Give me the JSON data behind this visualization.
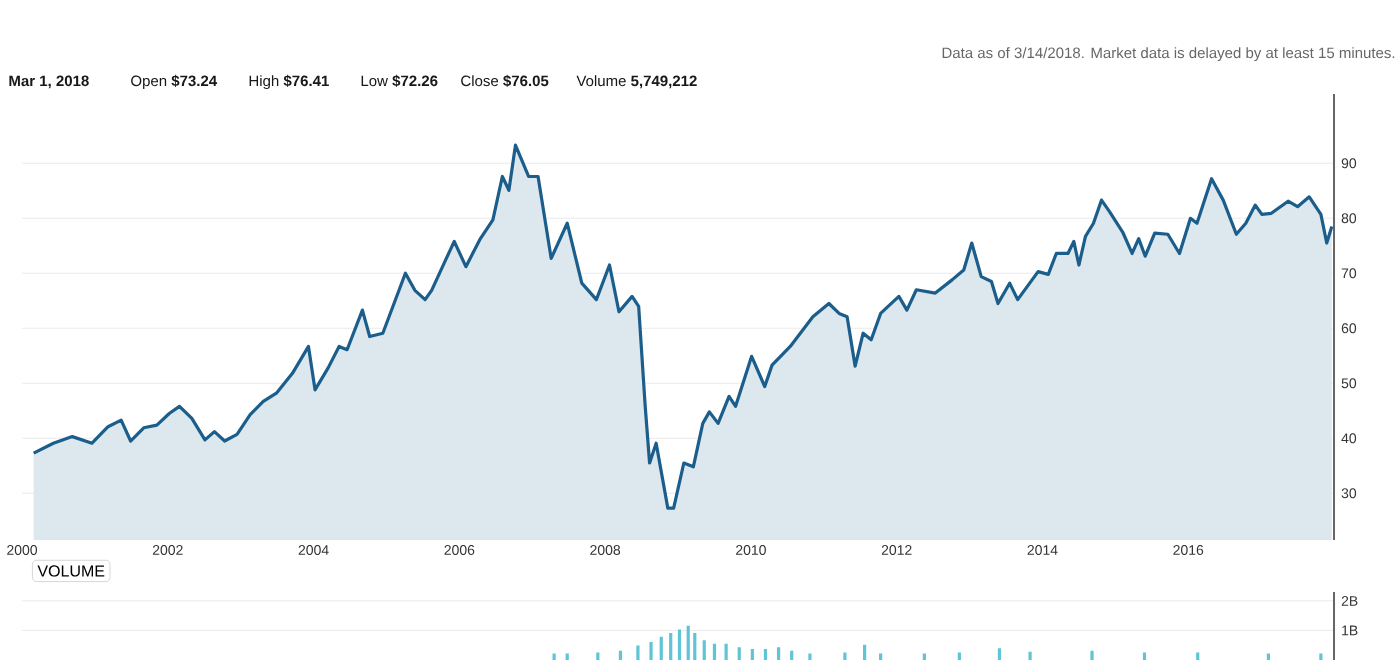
{
  "chart_data": [
    {
      "type": "area",
      "color": "#1b5e8c",
      "grid": "y",
      "xlim": [
        2000,
        2018
      ],
      "xticks": [
        2000,
        2002,
        2004,
        2006,
        2008,
        2010,
        2012,
        2014,
        2016
      ],
      "ylim": [
        21.5,
        102.6
      ],
      "yticks": [
        30,
        40,
        50,
        60,
        70,
        80,
        90
      ],
      "annotations": [
        "Data as of 3/14/2018. Market data is delayed by at least 15 minutes.",
        "**Mar 1, 2018**",
        "Open **$73.24**",
        "High **$76.41**",
        "Low **$72.26**",
        "Close **$76.05**",
        "Volume **5,749,212**"
      ],
      "x": [
        2000.16,
        2000.43,
        2000.69,
        2000.96,
        2001.18,
        2001.36,
        2001.49,
        2001.67,
        2001.85,
        2002.02,
        2002.16,
        2002.33,
        2002.51,
        2002.64,
        2002.78,
        2002.95,
        2003.13,
        2003.31,
        2003.49,
        2003.71,
        2003.93,
        2004.02,
        2004.2,
        2004.35,
        2004.46,
        2004.67,
        2004.77,
        2004.95,
        2005.26,
        2005.39,
        2005.53,
        2005.62,
        2005.79,
        2005.93,
        2006.09,
        2006.28,
        2006.46,
        2006.59,
        2006.68,
        2006.77,
        2006.95,
        2007.08,
        2007.26,
        2007.48,
        2007.68,
        2007.88,
        2008.06,
        2008.19,
        2008.37,
        2008.46,
        2008.55,
        2008.61,
        2008.7,
        2008.86,
        2008.94,
        2009.08,
        2009.21,
        2009.34,
        2009.43,
        2009.55,
        2009.7,
        2009.79,
        2010.01,
        2010.19,
        2010.29,
        2010.54,
        2010.85,
        2011.07,
        2011.21,
        2011.32,
        2011.43,
        2011.54,
        2011.65,
        2011.78,
        2012.03,
        2012.14,
        2012.27,
        2012.53,
        2012.76,
        2012.92,
        2013.03,
        2013.16,
        2013.3,
        2013.39,
        2013.55,
        2013.66,
        2013.94,
        2014.08,
        2014.19,
        2014.35,
        2014.43,
        2014.5,
        2014.59,
        2014.7,
        2014.81,
        2014.92,
        2015.1,
        2015.23,
        2015.32,
        2015.41,
        2015.54,
        2015.72,
        2015.88,
        2016.03,
        2016.12,
        2016.32,
        2016.48,
        2016.66,
        2016.79,
        2016.92,
        2017.01,
        2017.14,
        2017.37,
        2017.5,
        2017.66,
        2017.82,
        2017.9,
        2017.97
      ],
      "values": [
        37.3,
        39.1,
        40.3,
        39.1,
        42.1,
        43.3,
        39.5,
        41.9,
        42.4,
        44.5,
        45.8,
        43.6,
        39.7,
        41.2,
        39.5,
        40.7,
        44.3,
        46.7,
        48.2,
        51.8,
        56.7,
        48.8,
        52.8,
        56.7,
        56.1,
        63.3,
        58.5,
        59.1,
        70.0,
        66.9,
        65.2,
        66.9,
        71.8,
        75.8,
        71.2,
        76.1,
        79.7,
        87.6,
        85.1,
        93.3,
        87.6,
        87.6,
        72.7,
        79.1,
        68.2,
        65.2,
        71.5,
        63.0,
        65.8,
        64.0,
        45.8,
        35.5,
        39.1,
        27.3,
        27.3,
        35.5,
        34.8,
        42.7,
        44.8,
        42.7,
        47.6,
        45.8,
        54.9,
        49.4,
        53.3,
        56.7,
        62.1,
        64.5,
        62.7,
        62.1,
        53.1,
        59.1,
        57.9,
        62.7,
        65.8,
        63.3,
        67.0,
        66.4,
        68.8,
        70.6,
        75.5,
        69.4,
        68.5,
        64.5,
        68.2,
        65.2,
        70.3,
        69.8,
        73.6,
        73.6,
        75.8,
        71.5,
        76.7,
        79.1,
        83.3,
        81.2,
        77.5,
        73.6,
        76.3,
        73.1,
        77.3,
        77.1,
        73.6,
        80.0,
        79.1,
        87.2,
        83.3,
        77.1,
        79.1,
        82.4,
        80.7,
        80.9,
        83.1,
        82.1,
        83.9,
        80.7,
        75.5,
        78.5
      ]
    },
    {
      "type": "bar",
      "title": "VOLUME",
      "color": "#5fc4d6",
      "grid": "y",
      "tick_labels": "y",
      "xlim": [
        2000,
        2018
      ],
      "ylim": [
        0,
        2.3
      ],
      "yticks": [
        {
          "value": 1,
          "label": "1B"
        },
        {
          "value": 2,
          "label": "2B"
        }
      ],
      "x": [
        2007.3,
        2007.48,
        2007.9,
        2008.21,
        2008.45,
        2008.63,
        2008.77,
        2008.9,
        2009.02,
        2009.14,
        2009.23,
        2009.36,
        2009.5,
        2009.66,
        2009.84,
        2010.02,
        2010.2,
        2010.38,
        2010.56,
        2010.81,
        2011.29,
        2011.56,
        2011.78,
        2012.38,
        2012.86,
        2013.41,
        2013.83,
        2014.68,
        2015.4,
        2016.13,
        2017.1,
        2017.82
      ],
      "values": [
        0.22,
        0.22,
        0.25,
        0.31,
        0.49,
        0.61,
        0.79,
        0.91,
        1.03,
        1.16,
        0.91,
        0.67,
        0.55,
        0.55,
        0.43,
        0.37,
        0.37,
        0.43,
        0.31,
        0.22,
        0.25,
        0.52,
        0.22,
        0.22,
        0.25,
        0.4,
        0.28,
        0.31,
        0.25,
        0.25,
        0.22,
        0.22
      ]
    }
  ]
}
